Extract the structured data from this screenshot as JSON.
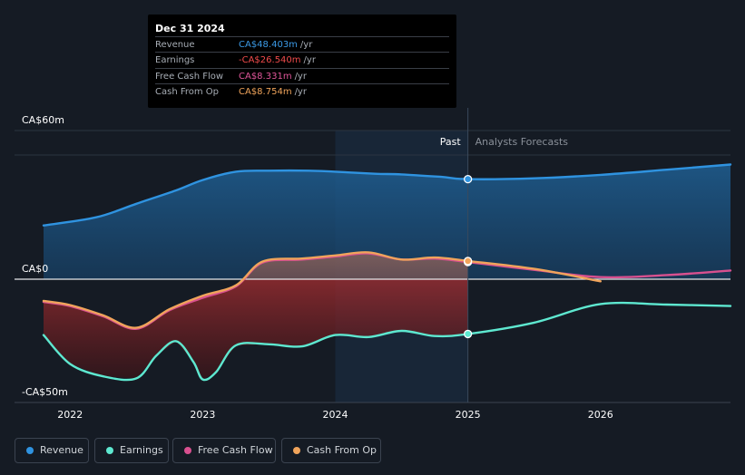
{
  "tooltip": {
    "date": "Dec 31 2024",
    "rows": [
      {
        "label": "Revenue",
        "value": "CA$48.403m",
        "unit": "/yr",
        "color": "#3b9ae6"
      },
      {
        "label": "Earnings",
        "value": "-CA$26.540m",
        "unit": "/yr",
        "color": "#f04b4b"
      },
      {
        "label": "Free Cash Flow",
        "value": "CA$8.331m",
        "unit": "/yr",
        "color": "#e0569a"
      },
      {
        "label": "Cash From Op",
        "value": "CA$8.754m",
        "unit": "/yr",
        "color": "#f0a45b"
      }
    ]
  },
  "legend": [
    {
      "label": "Revenue",
      "color": "#2f93e0"
    },
    {
      "label": "Earnings",
      "color": "#5ee8d0"
    },
    {
      "label": "Free Cash Flow",
      "color": "#d8508f"
    },
    {
      "label": "Cash From Op",
      "color": "#f0a45b"
    }
  ],
  "chart_data": {
    "type": "line",
    "title": "",
    "xlabel": "",
    "ylabel": "",
    "ylim": [
      -60,
      60
    ],
    "xlim": [
      2021.8,
      2026.98
    ],
    "y_tick_labels": [
      {
        "label": "CA$60m",
        "value": 60
      },
      {
        "label": "CA$0",
        "value": 0
      },
      {
        "label": "-CA$50m",
        "value": -50
      }
    ],
    "x_ticks": [
      {
        "label": "2022",
        "value": 2022
      },
      {
        "label": "2023",
        "value": 2023
      },
      {
        "label": "2024",
        "value": 2024
      },
      {
        "label": "2025",
        "value": 2025
      },
      {
        "label": "2026",
        "value": 2026
      }
    ],
    "past_label": "Past",
    "forecast_label": "Analysts Forecasts",
    "divider_x": 2025,
    "highlight_range": [
      2024,
      2025
    ],
    "series": [
      {
        "name": "Revenue",
        "color": "#2f93e0",
        "x": [
          2021.8,
          2022.2,
          2022.5,
          2022.8,
          2023.0,
          2023.25,
          2023.5,
          2023.8,
          2024.0,
          2024.3,
          2024.5,
          2024.8,
          2025.0,
          2025.5,
          2026.0,
          2026.5,
          2026.98
        ],
        "y": [
          26,
          30,
          36.5,
          43,
          48,
          52,
          52.5,
          52.5,
          52,
          51,
          50.7,
          49.5,
          48.4,
          48.8,
          50.5,
          53,
          55.5
        ],
        "points": [
          [
            2025.0,
            48.4
          ]
        ]
      },
      {
        "name": "Earnings",
        "color": "#5ee8d0",
        "x": [
          2021.8,
          2022.0,
          2022.25,
          2022.5,
          2022.65,
          2022.8,
          2022.93,
          2023.0,
          2023.1,
          2023.25,
          2023.5,
          2023.75,
          2024.0,
          2024.25,
          2024.5,
          2024.75,
          2025.0,
          2025.5,
          2026.0,
          2026.5,
          2026.98
        ],
        "y": [
          -27,
          -41,
          -47,
          -48,
          -37,
          -30,
          -40,
          -48.5,
          -45,
          -32,
          -31.5,
          -32.5,
          -27,
          -28,
          -25,
          -27.5,
          -26.5,
          -21,
          -12,
          -12.3,
          -13
        ],
        "points": [
          [
            2025.0,
            -26.5
          ]
        ]
      },
      {
        "name": "Free Cash Flow",
        "color": "#d8508f",
        "x": [
          2021.8,
          2022.0,
          2022.25,
          2022.5,
          2022.75,
          2023.0,
          2023.25,
          2023.45,
          2023.75,
          2024.0,
          2024.25,
          2024.5,
          2024.75,
          2025.0,
          2025.5,
          2026.0,
          2026.5,
          2026.98
        ],
        "y": [
          -11,
          -13,
          -18,
          -24,
          -15,
          -9,
          -3.5,
          8,
          9.5,
          11,
          12.5,
          9.5,
          10,
          8.3,
          4.5,
          1,
          2,
          4.2
        ],
        "points": [
          [
            2025.0,
            8.3
          ]
        ]
      },
      {
        "name": "Cash From Op",
        "color": "#f0a45b",
        "x": [
          2021.8,
          2022.0,
          2022.25,
          2022.5,
          2022.75,
          2023.0,
          2023.25,
          2023.45,
          2023.75,
          2024.0,
          2024.25,
          2024.5,
          2024.75,
          2025.0,
          2025.5,
          2026.0
        ],
        "y": [
          -10.5,
          -12.5,
          -17.5,
          -23.5,
          -14.5,
          -8,
          -3,
          8.5,
          10,
          11.5,
          13,
          9.5,
          10.5,
          8.8,
          5,
          -1
        ],
        "points": [
          [
            2025.0,
            8.8
          ]
        ]
      }
    ]
  }
}
